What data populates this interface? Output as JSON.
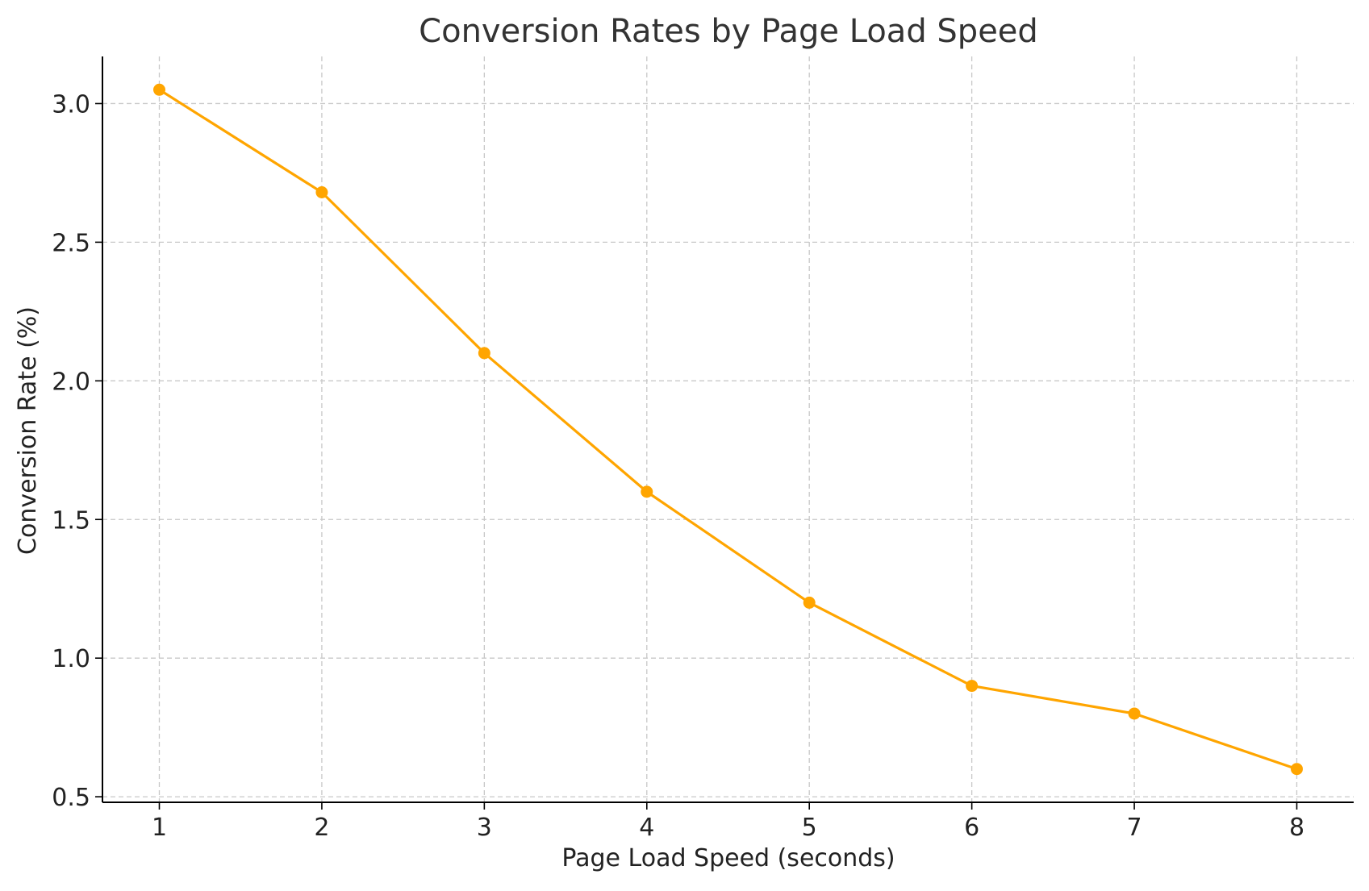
{
  "chart_data": {
    "type": "line",
    "title": "Conversion Rates by Page Load Speed",
    "xlabel": "Page Load Speed (seconds)",
    "ylabel": "Conversion Rate (%)",
    "x": [
      1,
      2,
      3,
      4,
      5,
      6,
      7,
      8
    ],
    "series": [
      {
        "values": [
          3.05,
          2.68,
          2.1,
          1.6,
          1.2,
          0.9,
          0.8,
          0.6
        ],
        "color": "#FFA500",
        "marker": "circle"
      }
    ],
    "xticks": [
      "1",
      "2",
      "3",
      "4",
      "5",
      "6",
      "7",
      "8"
    ],
    "yticks": [
      "0.5",
      "1.0",
      "1.5",
      "2.0",
      "2.5",
      "3.0"
    ],
    "xlim": [
      0.65,
      8.35
    ],
    "ylim": [
      0.48,
      3.17
    ],
    "grid": true,
    "colors": {
      "line": "#FFA500",
      "grid": "#c8c8c8",
      "axis": "#000000",
      "title": "#333333",
      "text": "#222222"
    }
  }
}
